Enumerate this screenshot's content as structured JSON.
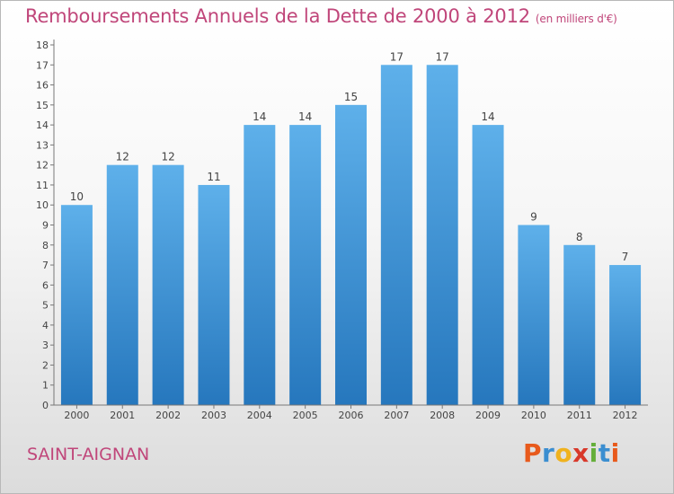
{
  "chart_data": {
    "type": "bar",
    "title": "Remboursements Annuels de la Dette de 2000 à 2012",
    "subtitle": "(en milliers d'€)",
    "categories": [
      "2000",
      "2001",
      "2002",
      "2003",
      "2004",
      "2005",
      "2006",
      "2007",
      "2008",
      "2009",
      "2010",
      "2011",
      "2012"
    ],
    "values": [
      10,
      12,
      12,
      11,
      14,
      14,
      15,
      17,
      17,
      14,
      9,
      8,
      7
    ],
    "ylim": [
      0,
      18
    ],
    "yticks": [
      0,
      1,
      2,
      3,
      4,
      5,
      6,
      7,
      8,
      9,
      10,
      11,
      12,
      13,
      14,
      15,
      16,
      17,
      18
    ],
    "grid": false,
    "legend": "none",
    "colors": {
      "bar_top": "#5eb0ea",
      "bar_bottom": "#2677bd",
      "title": "#c0467a"
    }
  },
  "commune": "SAINT-AIGNAN",
  "logo": {
    "text": "Proxiti"
  }
}
